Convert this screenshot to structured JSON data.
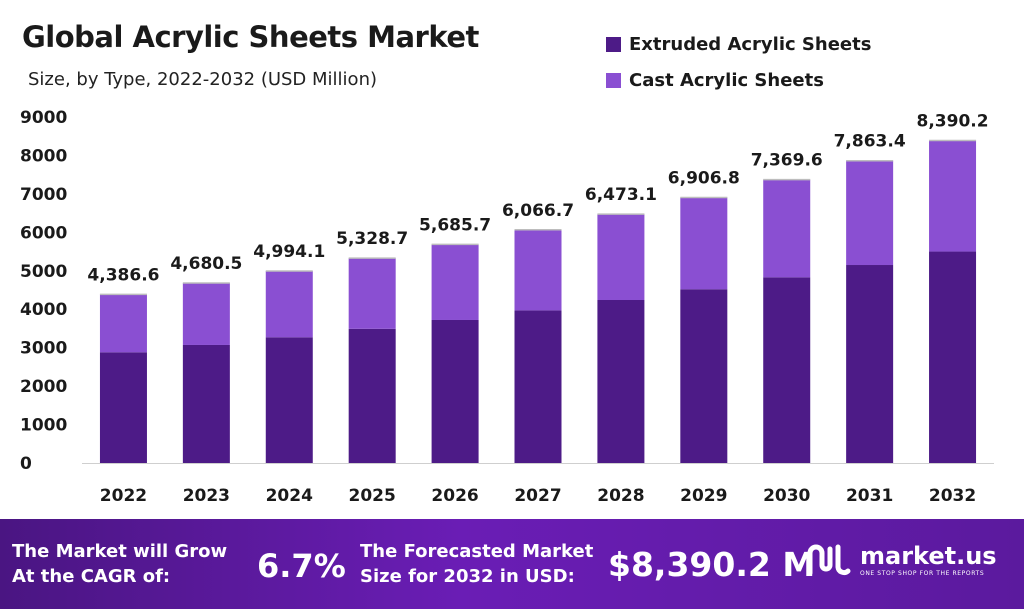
{
  "title": "Global Acrylic Sheets Market",
  "subtitle": "Size, by Type, 2022-2032 (USD Million)",
  "colors": {
    "extruded": "#4d1b87",
    "cast": "#8a4fd2",
    "axis": "#cfcfcf"
  },
  "legend": [
    {
      "label": "Extruded Acrylic Sheets",
      "color": "#4d1b87"
    },
    {
      "label": "Cast Acrylic Sheets",
      "color": "#8a4fd2"
    }
  ],
  "chart_data": {
    "type": "bar",
    "stacked": true,
    "categories": [
      "2022",
      "2023",
      "2024",
      "2025",
      "2026",
      "2027",
      "2028",
      "2029",
      "2030",
      "2031",
      "2032"
    ],
    "series": [
      {
        "name": "Extruded Acrylic Sheets",
        "values": [
          2880,
          3070,
          3270,
          3490,
          3720,
          3970,
          4240,
          4520,
          4830,
          5150,
          5500
        ]
      },
      {
        "name": "Cast Acrylic Sheets",
        "values": [
          1506.6,
          1610.5,
          1724.1,
          1838.7,
          1965.7,
          2096.7,
          2233.1,
          2386.8,
          2539.6,
          2713.4,
          2890.2
        ]
      }
    ],
    "totals": [
      "4,386.6",
      "4,680.5",
      "4,994.1",
      "5,328.7",
      "5,685.7",
      "6,066.7",
      "6,473.1",
      "6,906.8",
      "7,369.6",
      "7,863.4",
      "8,390.2"
    ],
    "total_values": [
      4386.6,
      4680.5,
      4994.1,
      5328.7,
      5685.7,
      6066.7,
      6473.1,
      6906.8,
      7369.6,
      7863.4,
      8390.2
    ],
    "yticks": [
      "0",
      "1000",
      "2000",
      "3000",
      "4000",
      "5000",
      "6000",
      "7000",
      "8000",
      "9000"
    ],
    "ylim": [
      0,
      9000
    ],
    "grid": false,
    "legend_position": "top-right"
  },
  "footer": {
    "cagr_text": "The Market will Grow At the CAGR of:",
    "cagr_value": "6.7%",
    "forecast_text": "The Forecasted Market Size for 2032 in USD:",
    "forecast_value": "$8,390.2 M",
    "brand": "market.us",
    "tagline": "ONE STOP SHOP FOR THE REPORTS"
  }
}
